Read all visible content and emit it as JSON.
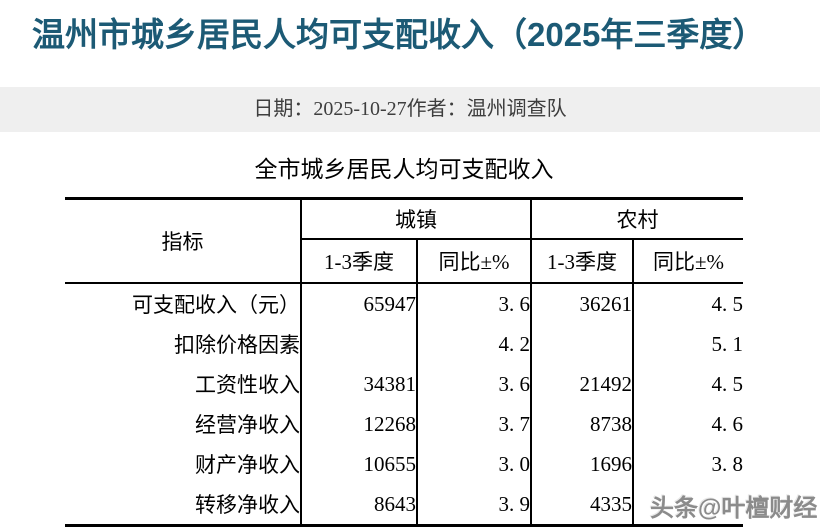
{
  "page": {
    "title": "温州市城乡居民人均可支配收入（2025年三季度）",
    "watermark": "头条@叶檀财经"
  },
  "colors": {
    "title": "#1c5a75",
    "date_bar_bg": "#efefef",
    "table_border": "#000000",
    "watermark": "#8b8b8b"
  },
  "meta": {
    "date_label": "日期：",
    "date": "2025-10-27",
    "author_label": "作者：",
    "author": "温州调查队"
  },
  "table": {
    "title": "全市城乡居民人均可支配收入",
    "indicator_header": "指标",
    "groups": [
      {
        "label": "城镇"
      },
      {
        "label": "农村"
      }
    ],
    "sub_headers": [
      "1-3季度",
      "同比±%",
      "1-3季度",
      "同比±%"
    ],
    "rows": [
      {
        "indicator": "可支配收入（元）",
        "urban_value": "65947",
        "urban_yoy": "3. 6",
        "rural_value": "36261",
        "rural_yoy": "4. 5"
      },
      {
        "indicator": "扣除价格因素",
        "urban_value": "",
        "urban_yoy": "4. 2",
        "rural_value": "",
        "rural_yoy": "5. 1"
      },
      {
        "indicator": "工资性收入",
        "urban_value": "34381",
        "urban_yoy": "3. 6",
        "rural_value": "21492",
        "rural_yoy": "4. 5"
      },
      {
        "indicator": "经营净收入",
        "urban_value": "12268",
        "urban_yoy": "3. 7",
        "rural_value": "8738",
        "rural_yoy": "4. 6"
      },
      {
        "indicator": "财产净收入",
        "urban_value": "10655",
        "urban_yoy": "3. 0",
        "rural_value": "1696",
        "rural_yoy": "3. 8"
      },
      {
        "indicator": "转移净收入",
        "urban_value": "8643",
        "urban_yoy": "3. 9",
        "rural_value": "4335",
        "rural_yoy": ""
      }
    ]
  }
}
